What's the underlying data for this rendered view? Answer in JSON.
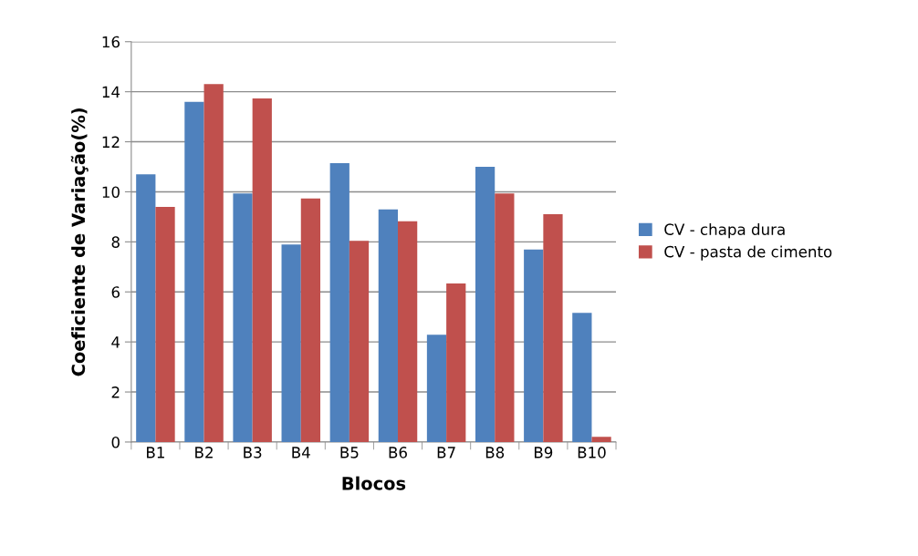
{
  "chart_data": {
    "type": "bar",
    "xlabel": "Blocos",
    "ylabel": "Coeficiente de Variação(%)",
    "categories": [
      "B1",
      "B2",
      "B3",
      "B4",
      "B5",
      "B6",
      "B7",
      "B8",
      "B9",
      "B10"
    ],
    "series": [
      {
        "name": "CV - chapa dura",
        "color": "#4f81bd",
        "values": [
          10.7,
          13.6,
          9.93,
          7.89,
          11.15,
          9.3,
          4.29,
          11.0,
          7.69,
          5.16
        ]
      },
      {
        "name": "CV - pasta de cimento",
        "color": "#c0504d",
        "values": [
          9.4,
          14.31,
          13.73,
          9.73,
          8.04,
          8.82,
          6.34,
          9.93,
          9.11,
          0.21
        ]
      }
    ],
    "ylim": [
      0,
      16
    ],
    "yticks": [
      0,
      2,
      4,
      6,
      8,
      10,
      12,
      14,
      16
    ],
    "grid": "y",
    "legend": "right"
  }
}
